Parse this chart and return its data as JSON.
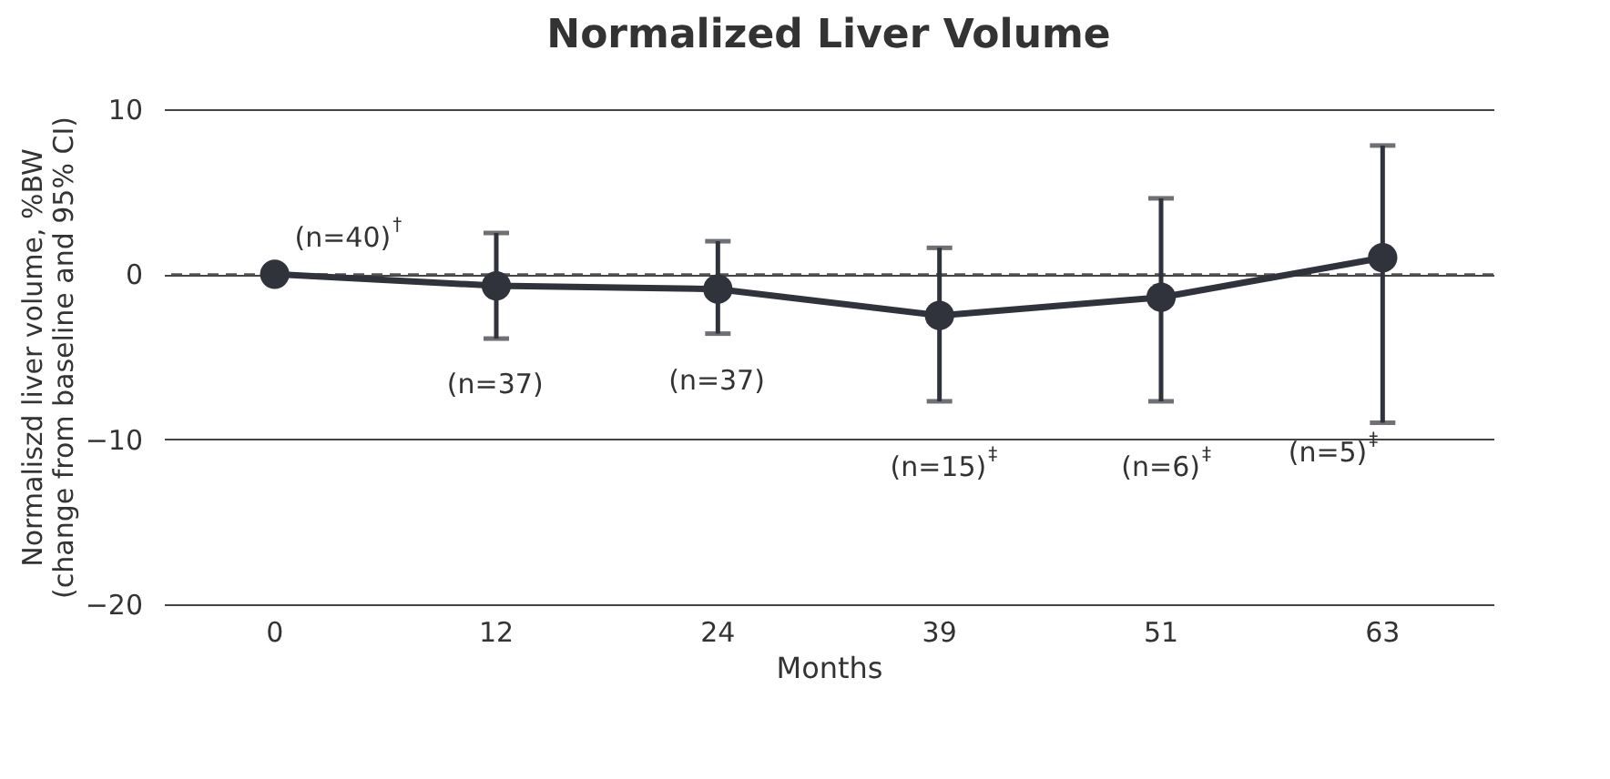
{
  "chart_data": {
    "type": "line",
    "title": "Normalized Liver Volume",
    "xlabel": "Months",
    "ylabel": "Normaliszd liver volume, %BW\n(change from baseline and 95% CI)",
    "categories": [
      "0",
      "12",
      "24",
      "39",
      "51",
      "63"
    ],
    "series": [
      {
        "color": "#30333b",
        "values": [
          0,
          -0.7,
          -0.9,
          -2.5,
          -1.4,
          1.0
        ],
        "errors": [
          null,
          [
            -3.9,
            2.5
          ],
          [
            -3.6,
            2.0
          ],
          [
            -7.7,
            1.6
          ],
          [
            -7.7,
            4.6
          ],
          [
            -9.0,
            7.8
          ]
        ]
      }
    ],
    "ylim": [
      -20,
      10
    ],
    "yticks": [
      -20,
      -10,
      0,
      10
    ],
    "grid": "y",
    "marker": "circle",
    "line_style": "solid",
    "ref_lines": [
      {
        "axis": "y",
        "value": 0,
        "color": "#555555",
        "line_style": "dashed"
      }
    ],
    "annotations": [
      {
        "text": "(n=40)$^{†}$",
        "x": "0",
        "y": 0
      },
      {
        "text": "(n=37)",
        "x": "12",
        "y": -0.7
      },
      {
        "text": "(n=37)",
        "x": "24",
        "y": -0.9
      },
      {
        "text": "(n=15)$^{‡}$",
        "x": "39",
        "y": -7.7
      },
      {
        "text": "(n=6)$^{‡}$",
        "x": "51",
        "y": -7.7
      },
      {
        "text": "(n=5)$^{‡}$",
        "x": "63",
        "y": -9.0
      }
    ]
  }
}
